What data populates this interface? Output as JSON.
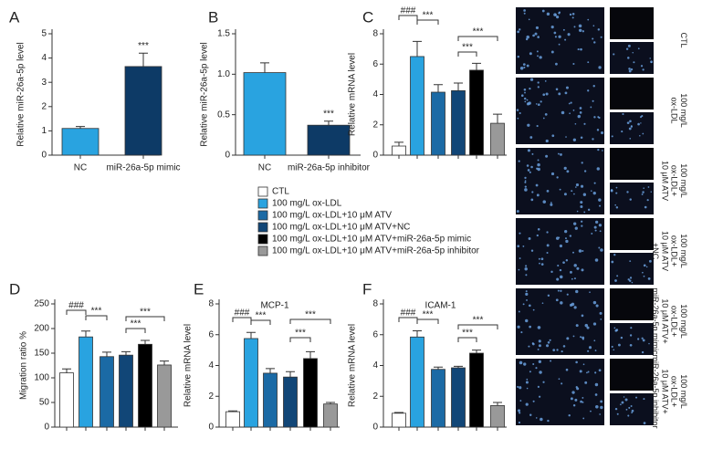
{
  "chart_data": [
    {
      "type": "bar",
      "label": "A",
      "ylabel": "Relative miR-26a-5p level",
      "categories": [
        "NC",
        "miR-26a-5p mimic"
      ],
      "values": [
        1.1,
        3.65
      ],
      "errors": [
        0.08,
        0.55
      ],
      "colors": [
        "#29a3e0",
        "#0d3a66"
      ],
      "ylim": [
        0,
        5
      ],
      "yticks": [
        0,
        1,
        2,
        3,
        4,
        5
      ],
      "annotations": [
        "***"
      ]
    },
    {
      "type": "bar",
      "label": "B",
      "ylabel": "Relative miR-26a-5p level",
      "categories": [
        "NC",
        "miR-26a-5p inhibitor"
      ],
      "values": [
        1.02,
        0.37
      ],
      "errors": [
        0.12,
        0.05
      ],
      "colors": [
        "#29a3e0",
        "#0d3a66"
      ],
      "ylim": [
        0,
        1.5
      ],
      "yticks": [
        0,
        0.5,
        {
          "value": 1,
          "label": "1.0"
        },
        1.5
      ],
      "annotations": [
        "***"
      ]
    },
    {
      "type": "bar",
      "label": "C",
      "ylabel": "Relative mRNA level",
      "categories": [
        null,
        null,
        null,
        null,
        null,
        null
      ],
      "values": [
        0.6,
        6.5,
        4.15,
        4.25,
        5.6,
        2.1
      ],
      "errors": [
        0.25,
        1.0,
        0.5,
        0.5,
        0.45,
        0.6
      ],
      "colors": [
        "#ffffff",
        "#29a3e0",
        "#1b6aa5",
        "#114677",
        "#000000",
        "#999999"
      ],
      "ylim": [
        0,
        8
      ],
      "yticks": [
        0,
        2,
        4,
        6,
        8
      ],
      "annotations": [
        "###",
        "***",
        "***",
        "***"
      ]
    },
    {
      "type": "bar",
      "label": "D",
      "ylabel": "Migration ratio %",
      "categories": [
        null,
        null,
        null,
        null,
        null,
        null
      ],
      "values": [
        110,
        183,
        143,
        146,
        168,
        126
      ],
      "errors": [
        8,
        12,
        9,
        7,
        8,
        8
      ],
      "colors": [
        "#ffffff",
        "#29a3e0",
        "#1b6aa5",
        "#114677",
        "#000000",
        "#999999"
      ],
      "ylim": [
        0,
        250
      ],
      "yticks": [
        0,
        50,
        100,
        150,
        200,
        250
      ],
      "annotations": [
        "###",
        "***",
        "***",
        "***"
      ]
    },
    {
      "type": "bar",
      "label": "E",
      "title": "MCP-1",
      "ylabel": "Relative mRNA level",
      "categories": [
        null,
        null,
        null,
        null,
        null,
        null
      ],
      "values": [
        1.0,
        5.75,
        3.5,
        3.25,
        4.45,
        1.5
      ],
      "errors": [
        0.05,
        0.4,
        0.3,
        0.35,
        0.45,
        0.1
      ],
      "colors": [
        "#ffffff",
        "#29a3e0",
        "#1b6aa5",
        "#114677",
        "#000000",
        "#999999"
      ],
      "ylim": [
        0,
        8
      ],
      "yticks": [
        0,
        2,
        4,
        6,
        8
      ],
      "annotations": [
        "###",
        "***",
        "***",
        "***"
      ]
    },
    {
      "type": "bar",
      "label": "F",
      "title": "ICAM-1",
      "ylabel": "Relative mRNA level",
      "categories": [
        null,
        null,
        null,
        null,
        null,
        null
      ],
      "values": [
        0.9,
        5.85,
        3.75,
        3.85,
        4.8,
        1.4
      ],
      "errors": [
        0.05,
        0.4,
        0.15,
        0.1,
        0.2,
        0.2
      ],
      "colors": [
        "#ffffff",
        "#29a3e0",
        "#1b6aa5",
        "#114677",
        "#000000",
        "#999999"
      ],
      "ylim": [
        0,
        8
      ],
      "yticks": [
        0,
        2,
        4,
        6,
        8
      ],
      "annotations": [
        "###",
        "***",
        "***",
        "***"
      ]
    }
  ],
  "legend": [
    {
      "name": "CTL",
      "color": "#ffffff"
    },
    {
      "name": "100 mg/L ox-LDL",
      "color": "#29a3e0"
    },
    {
      "name": "100 mg/L ox-LDL+10 μM ATV",
      "color": "#1b6aa5"
    },
    {
      "name": "100 mg/L ox-LDL+10 μM ATV+NC",
      "color": "#114677"
    },
    {
      "name": "100 mg/L ox-LDL+10 μM ATV+miR-26a-5p mimic",
      "color": "#000000"
    },
    {
      "name": "100 mg/L ox-LDL+10 μM ATV+miR-26a-5p inhibitor",
      "color": "#999999"
    }
  ],
  "micrographs": [
    [
      "CTL"
    ],
    [
      "100 mg/L",
      "ox-LDL"
    ],
    [
      "100 mg/L",
      "ox-LDL+",
      "10 μM ATV"
    ],
    [
      "100 mg/L",
      "ox-LDL+",
      "10 μM ATV",
      "+NC"
    ],
    [
      "100 mg/L",
      "ox-LDL+",
      "10 μM ATV+",
      "miR-26a-5p mimic"
    ],
    [
      "100 mg/L",
      "ox-LDL+",
      "10 μM ATV+",
      "miR-26a-5p inhibitor"
    ]
  ]
}
